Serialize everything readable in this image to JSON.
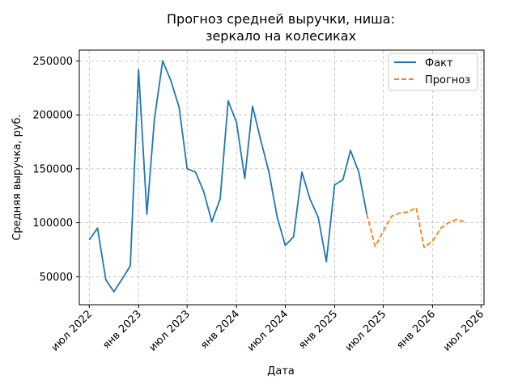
{
  "chart_data": {
    "type": "line",
    "title_lines": [
      "Прогноз средней выручки, ниша:",
      "зеркало на колесиках"
    ],
    "xlabel": "Дата",
    "ylabel": "Средняя выручка, руб.",
    "x_ticks": [
      {
        "date": "2022-07-01",
        "label": "июл 2022"
      },
      {
        "date": "2023-01-01",
        "label": "янв 2023"
      },
      {
        "date": "2023-07-01",
        "label": "июл 2023"
      },
      {
        "date": "2024-01-01",
        "label": "янв 2024"
      },
      {
        "date": "2024-07-01",
        "label": "июл 2024"
      },
      {
        "date": "2025-01-01",
        "label": "янв 2025"
      },
      {
        "date": "2025-07-01",
        "label": "июл 2025"
      },
      {
        "date": "2026-01-01",
        "label": "янв 2026"
      },
      {
        "date": "2026-07-01",
        "label": "июл 2026"
      }
    ],
    "y_ticks": [
      {
        "value": 50000,
        "label": "50000"
      },
      {
        "value": 100000,
        "label": "100000"
      },
      {
        "value": 150000,
        "label": "150000"
      },
      {
        "value": 200000,
        "label": "200000"
      },
      {
        "value": 250000,
        "label": "250000"
      }
    ],
    "xlim": [
      "2022-05-25",
      "2026-07-12"
    ],
    "ylim": [
      24000,
      260000
    ],
    "grid": true,
    "legend_position": "top-right",
    "series": [
      {
        "name": "Факт",
        "color": "#1f77b4",
        "dash": "solid",
        "points": [
          {
            "x": "2022-07-01",
            "y": 84000
          },
          {
            "x": "2022-08-01",
            "y": 95000
          },
          {
            "x": "2022-09-01",
            "y": 47000
          },
          {
            "x": "2022-10-01",
            "y": 36000
          },
          {
            "x": "2022-11-01",
            "y": 48000
          },
          {
            "x": "2022-12-01",
            "y": 60000
          },
          {
            "x": "2023-01-01",
            "y": 242000
          },
          {
            "x": "2023-02-01",
            "y": 108000
          },
          {
            "x": "2023-03-01",
            "y": 196000
          },
          {
            "x": "2023-04-01",
            "y": 250000
          },
          {
            "x": "2023-05-01",
            "y": 232000
          },
          {
            "x": "2023-06-01",
            "y": 207000
          },
          {
            "x": "2023-07-01",
            "y": 150000
          },
          {
            "x": "2023-08-01",
            "y": 147000
          },
          {
            "x": "2023-09-01",
            "y": 129000
          },
          {
            "x": "2023-10-01",
            "y": 101000
          },
          {
            "x": "2023-11-01",
            "y": 122000
          },
          {
            "x": "2023-12-01",
            "y": 213000
          },
          {
            "x": "2024-01-01",
            "y": 193000
          },
          {
            "x": "2024-02-01",
            "y": 141000
          },
          {
            "x": "2024-03-01",
            "y": 208000
          },
          {
            "x": "2024-04-01",
            "y": 176000
          },
          {
            "x": "2024-05-01",
            "y": 147000
          },
          {
            "x": "2024-06-01",
            "y": 105000
          },
          {
            "x": "2024-07-01",
            "y": 79000
          },
          {
            "x": "2024-08-01",
            "y": 87000
          },
          {
            "x": "2024-09-01",
            "y": 147000
          },
          {
            "x": "2024-10-01",
            "y": 122000
          },
          {
            "x": "2024-11-01",
            "y": 105000
          },
          {
            "x": "2024-12-01",
            "y": 64000
          },
          {
            "x": "2025-01-01",
            "y": 135000
          },
          {
            "x": "2025-02-01",
            "y": 140000
          },
          {
            "x": "2025-03-01",
            "y": 167000
          },
          {
            "x": "2025-04-01",
            "y": 147000
          },
          {
            "x": "2025-05-01",
            "y": 108000
          }
        ]
      },
      {
        "name": "Прогноз",
        "color": "#ff7f0e",
        "dash": "dashed",
        "points": [
          {
            "x": "2025-05-01",
            "y": 108000
          },
          {
            "x": "2025-06-01",
            "y": 78000
          },
          {
            "x": "2025-07-01",
            "y": 92000
          },
          {
            "x": "2025-08-01",
            "y": 106000
          },
          {
            "x": "2025-09-01",
            "y": 109000
          },
          {
            "x": "2025-10-01",
            "y": 110000
          },
          {
            "x": "2025-11-01",
            "y": 114000
          },
          {
            "x": "2025-12-01",
            "y": 77000
          },
          {
            "x": "2026-01-01",
            "y": 83000
          },
          {
            "x": "2026-02-01",
            "y": 95000
          },
          {
            "x": "2026-03-01",
            "y": 100000
          },
          {
            "x": "2026-04-01",
            "y": 103000
          },
          {
            "x": "2026-05-01",
            "y": 101000
          }
        ]
      }
    ]
  }
}
